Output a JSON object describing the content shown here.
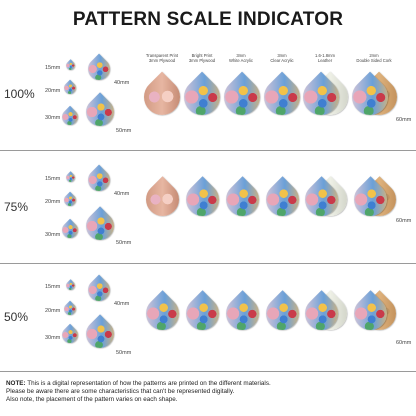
{
  "title": "PATTERN SCALE INDICATOR",
  "columns": [
    "Transparent Print\n3mm Plywood",
    "Bright Print\n3mm Plywood",
    "3mm\nWhite Acrylic",
    "3mm\nClear Acrylic",
    "1.6-1.8mm\nLeather",
    "2mm\nDouble Sided Cork"
  ],
  "sizes": {
    "s15": "15mm",
    "s20": "20mm",
    "s30": "30mm",
    "s40": "40mm",
    "s50": "50mm",
    "s60": "60mm"
  },
  "rows": [
    {
      "label": "100%"
    },
    {
      "label": "75%"
    },
    {
      "label": "50%"
    }
  ],
  "note": {
    "lead": "NOTE:",
    "line1": " This is a digital representation of how the patterns are printed on the different materials.",
    "line2": "Please be aware there are some characteristics that can't be represented digitally.",
    "line3": "Also note, the placement of the pattern varies on each shape."
  }
}
